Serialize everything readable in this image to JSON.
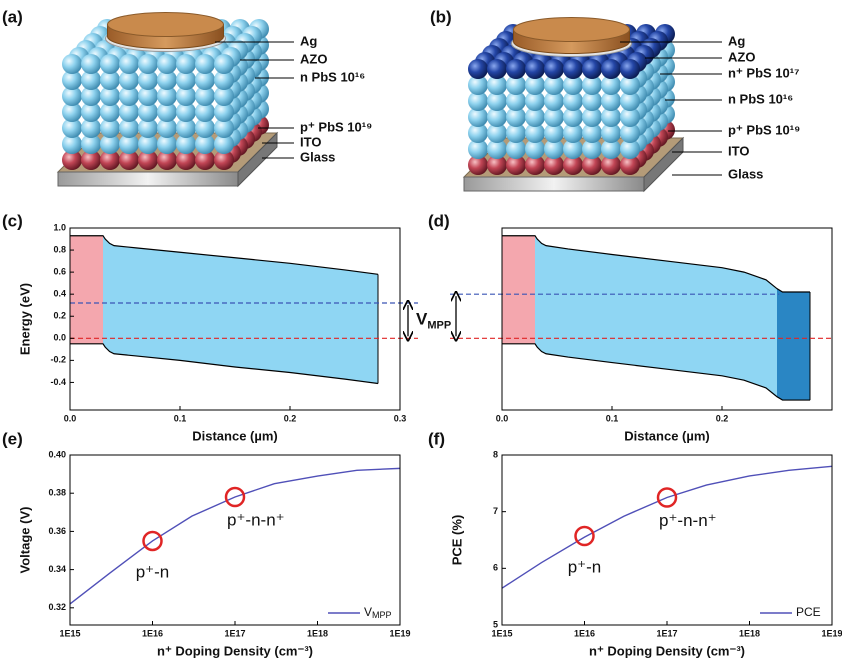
{
  "devices": [
    {
      "panel": "(a)",
      "layers": [
        "Ag",
        "AZO",
        "n PbS 10¹⁶",
        "p⁺ PbS 10¹⁹",
        "ITO",
        "Glass"
      ]
    },
    {
      "panel": "(b)",
      "layers": [
        "Ag",
        "AZO",
        "n⁺ PbS 10¹⁷",
        "n PbS 10¹⁶",
        "p⁺ PbS 10¹⁹",
        "ITO",
        "Glass"
      ]
    }
  ],
  "chart_data": [
    {
      "type": "band",
      "panel": "(c)",
      "xlabel": "Distance (µm)",
      "ylabel": "Energy (eV)",
      "xlim": [
        0,
        0.3
      ],
      "ylim": [
        -0.65,
        1.0
      ],
      "xticks": [
        {
          "value": 0,
          "label": "0.0"
        },
        0.1,
        0.2,
        0.3
      ],
      "yticks": [
        {
          "value": 1,
          "label": "1.0"
        },
        0.8,
        0.6,
        0.4,
        0.2,
        {
          "value": 0,
          "label": "0.0"
        },
        -0.2,
        -0.4
      ],
      "x": [
        0,
        0.03,
        0.032,
        0.036,
        0.04,
        0.06,
        0.1,
        0.15,
        0.2,
        0.25,
        0.28
      ],
      "series": [
        {
          "color": "#000000",
          "values": [
            0.93,
            0.93,
            0.9,
            0.86,
            0.84,
            0.82,
            0.78,
            0.73,
            0.68,
            0.62,
            0.58
          ]
        },
        {
          "color": "#000000",
          "values": [
            -0.05,
            -0.05,
            -0.08,
            -0.12,
            -0.14,
            -0.16,
            -0.2,
            -0.26,
            -0.31,
            -0.37,
            -0.41
          ]
        }
      ],
      "regions": [
        {
          "xrange": [
            0,
            0.03
          ],
          "color": "#f4a7ae"
        },
        {
          "xrange": [
            0.03,
            0.28
          ],
          "color": "#8fd6f3"
        }
      ],
      "levels": [
        {
          "value": 0.32,
          "color": "#3a55b5"
        },
        {
          "value": 0,
          "color": "#e02525"
        }
      ],
      "annotation": {
        "text": "V",
        "sub": "MPP"
      }
    },
    {
      "type": "band",
      "panel": "(d)",
      "xlabel": "Distance (µm)",
      "xlim": [
        0,
        0.3
      ],
      "ylim": [
        -0.65,
        1.0
      ],
      "xticks": [
        {
          "value": 0,
          "label": "0.0"
        },
        0.1,
        0.2
      ],
      "x": [
        0,
        0.03,
        0.032,
        0.036,
        0.04,
        0.06,
        0.1,
        0.15,
        0.2,
        0.22,
        0.24,
        0.25,
        0.255,
        0.28
      ],
      "series": [
        {
          "color": "#000000",
          "values": [
            0.93,
            0.93,
            0.9,
            0.86,
            0.84,
            0.81,
            0.76,
            0.7,
            0.64,
            0.6,
            0.53,
            0.45,
            0.42,
            0.42
          ]
        },
        {
          "color": "#000000",
          "values": [
            -0.05,
            -0.05,
            -0.08,
            -0.12,
            -0.14,
            -0.17,
            -0.22,
            -0.28,
            -0.34,
            -0.38,
            -0.45,
            -0.53,
            -0.56,
            -0.56
          ]
        }
      ],
      "regions": [
        {
          "xrange": [
            0,
            0.03
          ],
          "color": "#f4a7ae"
        },
        {
          "xrange": [
            0.03,
            0.25
          ],
          "color": "#8fd6f3"
        },
        {
          "xrange": [
            0.25,
            0.28
          ],
          "color": "#2a86c4"
        }
      ],
      "levels": [
        {
          "value": 0.4,
          "color": "#3a55b5"
        },
        {
          "value": 0,
          "color": "#e02525"
        }
      ]
    },
    {
      "type": "line",
      "panel": "(e)",
      "xlabel": "n⁺ Doping Density (cm⁻³)",
      "ylabel": "Voltage (V)",
      "xscale": "log",
      "xlim": [
        1000000000000000.0,
        1e+19
      ],
      "ylim": [
        0.311,
        0.4
      ],
      "xticks": [
        {
          "value": 1000000000000000.0,
          "label": "1E15"
        },
        {
          "value": 1e+16,
          "label": "1E16"
        },
        {
          "value": 1e+17,
          "label": "1E17"
        },
        {
          "value": 1e+18,
          "label": "1E18"
        },
        {
          "value": 1e+19,
          "label": "1E19"
        }
      ],
      "yticks": [
        0.32,
        0.34,
        0.36,
        0.38,
        {
          "value": 0.4,
          "label": "0.40"
        }
      ],
      "x": [
        1000000000000000.0,
        3000000000000000.0,
        1e+16,
        3e+16,
        1e+17,
        3e+17,
        1e+18,
        3e+18,
        1e+19
      ],
      "series": [
        {
          "name": "V",
          "name_sub": "MPP",
          "color": "#5050b8",
          "values": [
            0.322,
            0.338,
            0.355,
            0.368,
            0.378,
            0.385,
            0.389,
            0.392,
            0.393
          ]
        }
      ],
      "markers": [
        {
          "x": 1e+16,
          "y": 0.355,
          "label": "p⁺-n"
        },
        {
          "x": 1e+17,
          "y": 0.378,
          "label": "p⁺-n-n⁺"
        }
      ],
      "marker_color": "#e02525",
      "legend": "lower right"
    },
    {
      "type": "line",
      "panel": "(f)",
      "xlabel": "n⁺ Doping Density (cm⁻³)",
      "ylabel": "PCE (%)",
      "xscale": "log",
      "xlim": [
        1000000000000000.0,
        1e+19
      ],
      "ylim": [
        5,
        8
      ],
      "xticks": [
        {
          "value": 1000000000000000.0,
          "label": "1E15"
        },
        {
          "value": 1e+16,
          "label": "1E16"
        },
        {
          "value": 1e+17,
          "label": "1E17"
        },
        {
          "value": 1e+18,
          "label": "1E18"
        },
        {
          "value": 1e+19,
          "label": "1E19"
        }
      ],
      "yticks": [
        5,
        6,
        7,
        8
      ],
      "x": [
        1000000000000000.0,
        3000000000000000.0,
        1e+16,
        3e+16,
        1e+17,
        3e+17,
        1e+18,
        3e+18,
        1e+19
      ],
      "series": [
        {
          "name": "PCE",
          "color": "#5050b8",
          "values": [
            5.65,
            6.1,
            6.55,
            6.92,
            7.25,
            7.47,
            7.63,
            7.73,
            7.8
          ]
        }
      ],
      "markers": [
        {
          "x": 1e+16,
          "y": 6.57,
          "label": "p⁺-n"
        },
        {
          "x": 1e+17,
          "y": 7.25,
          "label": "p⁺-n-n⁺"
        }
      ],
      "marker_color": "#e02525",
      "legend": "lower right"
    }
  ]
}
